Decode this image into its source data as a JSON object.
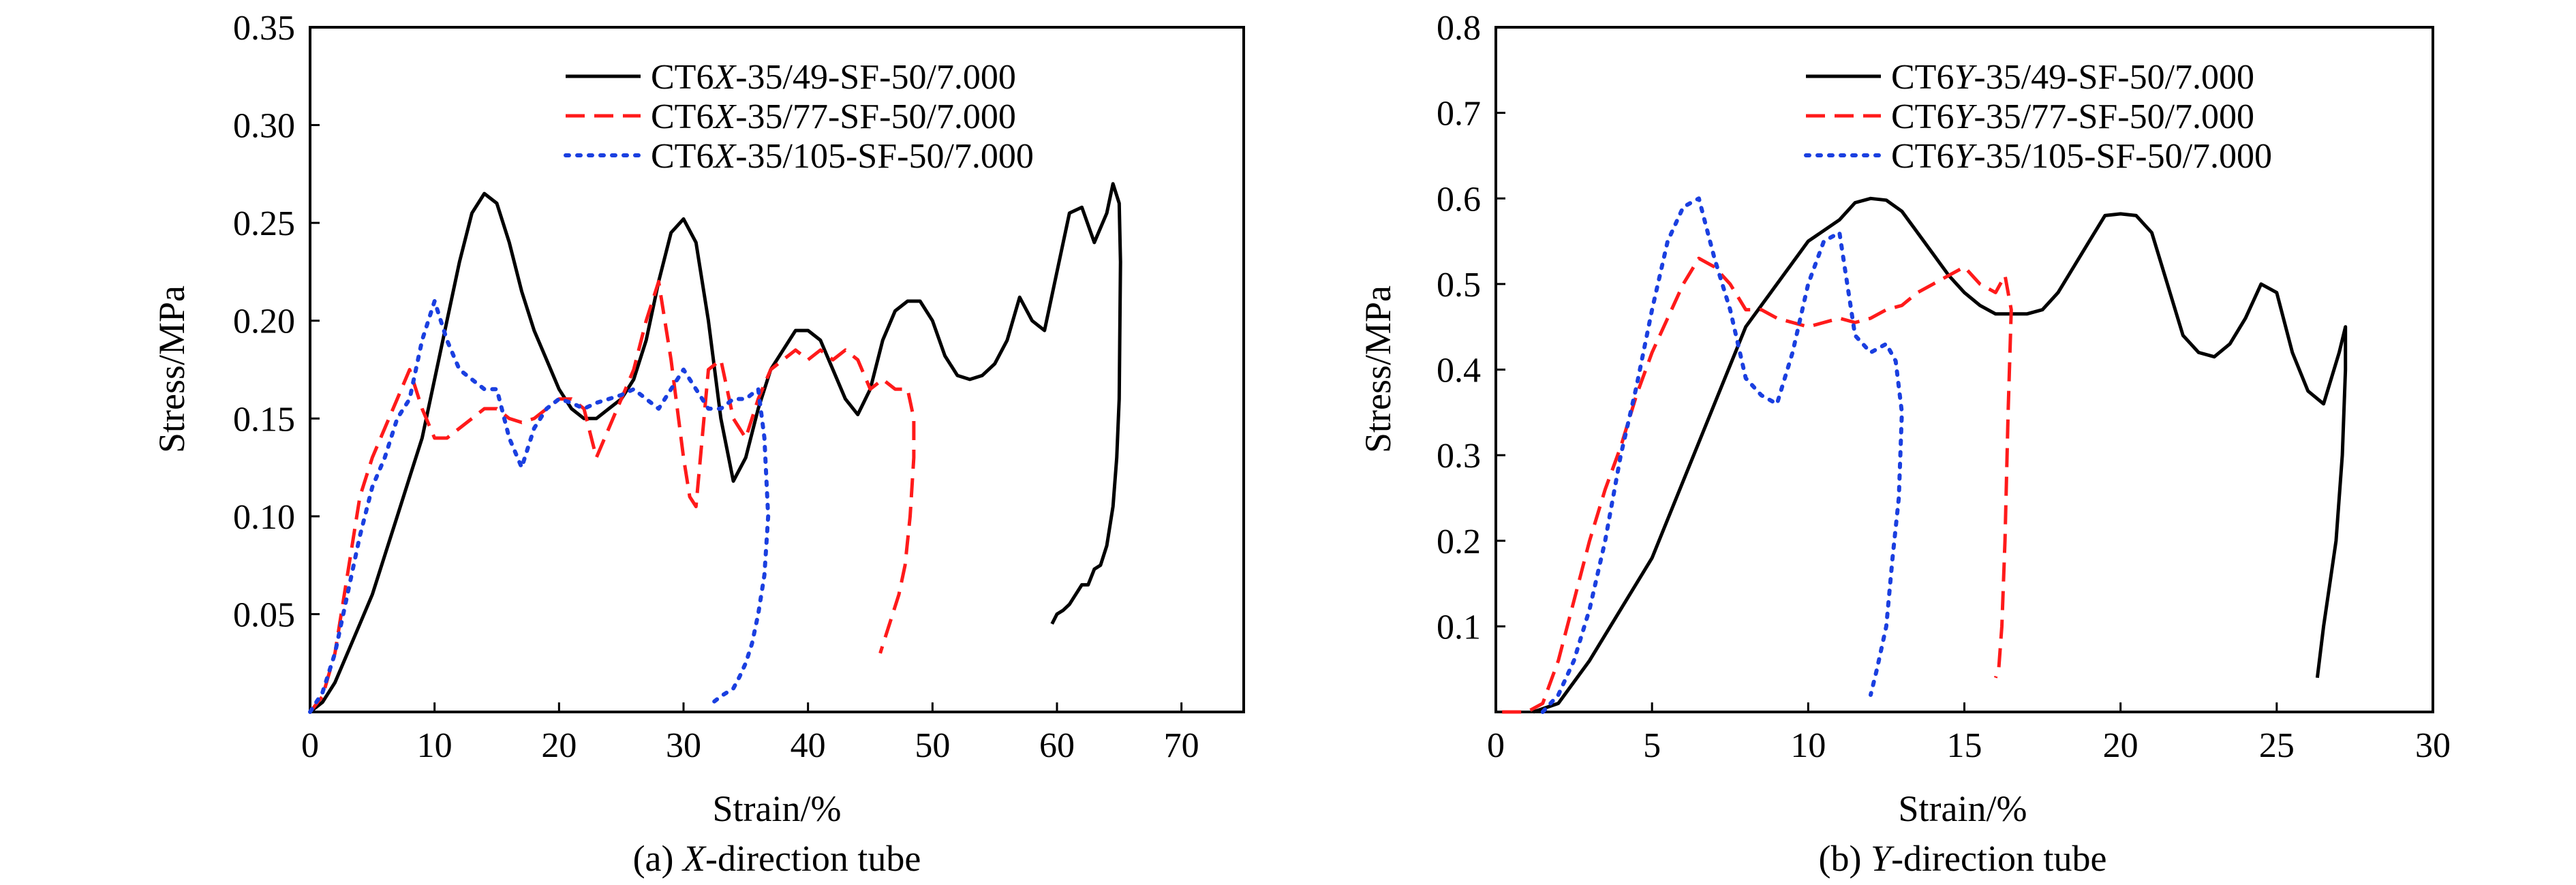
{
  "chart_data": [
    {
      "panel_id": "a",
      "type": "line",
      "caption": "(a) X-direction tube",
      "caption_prefix": "(a) ",
      "caption_italic": "X",
      "caption_suffix": "-direction tube",
      "xlabel": "Strain/%",
      "ylabel": "Stress/MPa",
      "xlim": [
        0,
        75
      ],
      "ylim": [
        0,
        0.35
      ],
      "xticks": [
        0,
        10,
        20,
        30,
        40,
        50,
        60,
        70
      ],
      "yticks": [
        0.05,
        0.1,
        0.15,
        0.2,
        0.25,
        0.3,
        0.35
      ],
      "yticks_labels": [
        "0.05",
        "0.10",
        "0.15",
        "0.20",
        "0.25",
        "0.30",
        "0.35"
      ],
      "grid": false,
      "legend_position": "top-right",
      "series": [
        {
          "name": "CT6X-35/49-SF-50/7.000",
          "legend_prefix": "CT6",
          "legend_italic": "X",
          "legend_suffix": "-35/49-SF-50/7.000",
          "color": "#000000",
          "style": "solid",
          "x": [
            0,
            1,
            2,
            3,
            4,
            5,
            6,
            7,
            8,
            9,
            10,
            11,
            12,
            13,
            14,
            15,
            16,
            17,
            18,
            19,
            20,
            21,
            22,
            23,
            24,
            25,
            26,
            27,
            28,
            29,
            30,
            31,
            32,
            33,
            34,
            35,
            36,
            37,
            38,
            39,
            40,
            41,
            42,
            43,
            44,
            45,
            46,
            47,
            48,
            49,
            50,
            51,
            52,
            53,
            54,
            55,
            56,
            57,
            58,
            59,
            60,
            61,
            62,
            63,
            64,
            64.5,
            65,
            65.1,
            65,
            64.8,
            64.5,
            64,
            63.5,
            63,
            62.5,
            62,
            61.5,
            61,
            60.5,
            60,
            59.6
          ],
          "y": [
            0,
            0.005,
            0.015,
            0.03,
            0.045,
            0.06,
            0.08,
            0.1,
            0.12,
            0.14,
            0.17,
            0.2,
            0.23,
            0.255,
            0.265,
            0.26,
            0.24,
            0.215,
            0.195,
            0.18,
            0.165,
            0.155,
            0.15,
            0.15,
            0.155,
            0.16,
            0.17,
            0.19,
            0.22,
            0.245,
            0.252,
            0.24,
            0.2,
            0.15,
            0.118,
            0.13,
            0.155,
            0.175,
            0.185,
            0.195,
            0.195,
            0.19,
            0.175,
            0.16,
            0.152,
            0.165,
            0.19,
            0.205,
            0.21,
            0.21,
            0.2,
            0.182,
            0.172,
            0.17,
            0.172,
            0.178,
            0.19,
            0.212,
            0.2,
            0.195,
            0.225,
            0.255,
            0.258,
            0.24,
            0.255,
            0.27,
            0.26,
            0.23,
            0.16,
            0.13,
            0.105,
            0.085,
            0.075,
            0.073,
            0.065,
            0.065,
            0.06,
            0.055,
            0.052,
            0.05,
            0.045
          ]
        },
        {
          "name": "CT6X-35/77-SF-50/7.000",
          "legend_prefix": "CT6",
          "legend_italic": "X",
          "legend_suffix": "-35/77-SF-50/7.000",
          "color": "#ff1a1a",
          "style": "dashed",
          "x": [
            0,
            1,
            2,
            3,
            4,
            5,
            6,
            7,
            8,
            9,
            10,
            11,
            12,
            13,
            14,
            15,
            16,
            17,
            18,
            19,
            20,
            21,
            22,
            23,
            24,
            25,
            26,
            27,
            28,
            29,
            30,
            30.5,
            31,
            32,
            33,
            34,
            35,
            36,
            37,
            38,
            39,
            40,
            41,
            42,
            43,
            44,
            45,
            46,
            47,
            48,
            48.5,
            48.5,
            48.2,
            47.8,
            47.3,
            46.8,
            46.3,
            45.8
          ],
          "y": [
            0,
            0.008,
            0.03,
            0.07,
            0.11,
            0.13,
            0.145,
            0.16,
            0.175,
            0.155,
            0.14,
            0.14,
            0.145,
            0.15,
            0.155,
            0.155,
            0.15,
            0.148,
            0.15,
            0.155,
            0.16,
            0.16,
            0.155,
            0.13,
            0.145,
            0.16,
            0.175,
            0.2,
            0.22,
            0.18,
            0.13,
            0.11,
            0.105,
            0.175,
            0.18,
            0.15,
            0.14,
            0.16,
            0.175,
            0.18,
            0.185,
            0.18,
            0.185,
            0.18,
            0.185,
            0.18,
            0.165,
            0.17,
            0.165,
            0.165,
            0.15,
            0.13,
            0.1,
            0.075,
            0.06,
            0.05,
            0.04,
            0.03
          ]
        },
        {
          "name": "CT6X-35/105-SF-50/7.000",
          "legend_prefix": "CT6",
          "legend_italic": "X",
          "legend_suffix": "-35/105-SF-50/7.000",
          "color": "#1a3fe0",
          "style": "dotted",
          "x": [
            0,
            1,
            2,
            3,
            4,
            5,
            6,
            7,
            8,
            9,
            10,
            11,
            12,
            13,
            14,
            15,
            16,
            17,
            18,
            19,
            20,
            21,
            22,
            23,
            24,
            25,
            26,
            27,
            28,
            29,
            30,
            31,
            32,
            33,
            34,
            35,
            36,
            36.5,
            36.8,
            36.5,
            36,
            35.5,
            35,
            34.5,
            34,
            33,
            32
          ],
          "y": [
            0,
            0.01,
            0.03,
            0.06,
            0.09,
            0.115,
            0.13,
            0.15,
            0.16,
            0.19,
            0.21,
            0.19,
            0.175,
            0.17,
            0.165,
            0.165,
            0.14,
            0.125,
            0.145,
            0.155,
            0.16,
            0.158,
            0.155,
            0.158,
            0.16,
            0.162,
            0.165,
            0.16,
            0.155,
            0.165,
            0.175,
            0.165,
            0.155,
            0.155,
            0.16,
            0.16,
            0.165,
            0.14,
            0.1,
            0.07,
            0.05,
            0.035,
            0.025,
            0.018,
            0.012,
            0.008,
            0.003
          ]
        }
      ]
    },
    {
      "panel_id": "b",
      "type": "line",
      "caption": "(b) Y-direction tube",
      "caption_prefix": "(b) ",
      "caption_italic": "Y",
      "caption_suffix": "-direction tube",
      "xlabel": "Strain/%",
      "ylabel": "Stress/MPa",
      "xlim": [
        0,
        30
      ],
      "ylim": [
        0,
        0.8
      ],
      "xticks": [
        0,
        5,
        10,
        15,
        20,
        25,
        30
      ],
      "yticks": [
        0.1,
        0.2,
        0.3,
        0.4,
        0.5,
        0.6,
        0.7,
        0.8
      ],
      "yticks_labels": [
        "0.1",
        "0.2",
        "0.3",
        "0.4",
        "0.5",
        "0.6",
        "0.7",
        "0.8"
      ],
      "grid": false,
      "legend_position": "top-right",
      "series": [
        {
          "name": "CT6Y-35/49-SF-50/7.000",
          "legend_prefix": "CT6",
          "legend_italic": "Y",
          "legend_suffix": "-35/49-SF-50/7.000",
          "color": "#000000",
          "style": "solid",
          "x": [
            1.2,
            2,
            3,
            4,
            5,
            6,
            7,
            8,
            9,
            10,
            11,
            11.5,
            12,
            12.5,
            13,
            13.5,
            14,
            14.5,
            15,
            15.5,
            16,
            16.5,
            17,
            17.5,
            18,
            19,
            19.5,
            20,
            20.5,
            21,
            21.5,
            22,
            22.5,
            23,
            23.5,
            24,
            24.5,
            25,
            25.5,
            26,
            26.5,
            27,
            27.2,
            27.2,
            27.1,
            26.9,
            26.7,
            26.5,
            26.3
          ],
          "y": [
            0,
            0.01,
            0.06,
            0.12,
            0.18,
            0.27,
            0.36,
            0.45,
            0.5,
            0.55,
            0.575,
            0.595,
            0.6,
            0.598,
            0.585,
            0.56,
            0.535,
            0.51,
            0.49,
            0.475,
            0.465,
            0.465,
            0.465,
            0.47,
            0.49,
            0.55,
            0.58,
            0.582,
            0.58,
            0.56,
            0.5,
            0.44,
            0.42,
            0.415,
            0.43,
            0.46,
            0.5,
            0.49,
            0.42,
            0.375,
            0.36,
            0.42,
            0.45,
            0.4,
            0.3,
            0.2,
            0.15,
            0.1,
            0.04
          ]
        },
        {
          "name": "CT6Y-35/77-SF-50/7.000",
          "legend_prefix": "CT6",
          "legend_italic": "Y",
          "legend_suffix": "-35/77-SF-50/7.000",
          "color": "#ff1a1a",
          "style": "dashed",
          "x": [
            0.2,
            1,
            1.5,
            2,
            2.5,
            3,
            3.5,
            4,
            4.5,
            5,
            5.5,
            6,
            6.5,
            7,
            7.5,
            8,
            8.5,
            9,
            9.5,
            10,
            10.5,
            11,
            11.5,
            12,
            12.5,
            13,
            13.5,
            14,
            14.5,
            15,
            15.5,
            16,
            16.3,
            16.5,
            16.4,
            16.3,
            16.2,
            16.1,
            16
          ],
          "y": [
            0,
            0,
            0.01,
            0.06,
            0.13,
            0.2,
            0.26,
            0.31,
            0.37,
            0.42,
            0.46,
            0.5,
            0.53,
            0.52,
            0.5,
            0.47,
            0.47,
            0.46,
            0.455,
            0.45,
            0.455,
            0.46,
            0.455,
            0.46,
            0.47,
            0.475,
            0.49,
            0.5,
            0.51,
            0.52,
            0.5,
            0.49,
            0.51,
            0.47,
            0.35,
            0.2,
            0.1,
            0.05,
            0.04
          ]
        },
        {
          "name": "CT6Y-35/105-SF-50/7.000",
          "legend_prefix": "CT6",
          "legend_italic": "Y",
          "legend_suffix": "-35/105-SF-50/7.000",
          "color": "#1a3fe0",
          "style": "dotted",
          "x": [
            1.5,
            2,
            2.5,
            3,
            3.5,
            4,
            4.5,
            5,
            5.5,
            6,
            6.5,
            7,
            7.5,
            8,
            8.5,
            9,
            9.5,
            10,
            10.5,
            11,
            11.5,
            12,
            12.5,
            12.8,
            13,
            12.9,
            12.7,
            12.5,
            12.2,
            12
          ],
          "y": [
            0,
            0.02,
            0.06,
            0.12,
            0.2,
            0.3,
            0.38,
            0.47,
            0.55,
            0.59,
            0.6,
            0.53,
            0.47,
            0.39,
            0.37,
            0.36,
            0.42,
            0.5,
            0.55,
            0.56,
            0.44,
            0.42,
            0.43,
            0.41,
            0.35,
            0.25,
            0.18,
            0.1,
            0.05,
            0.02
          ]
        }
      ]
    }
  ]
}
